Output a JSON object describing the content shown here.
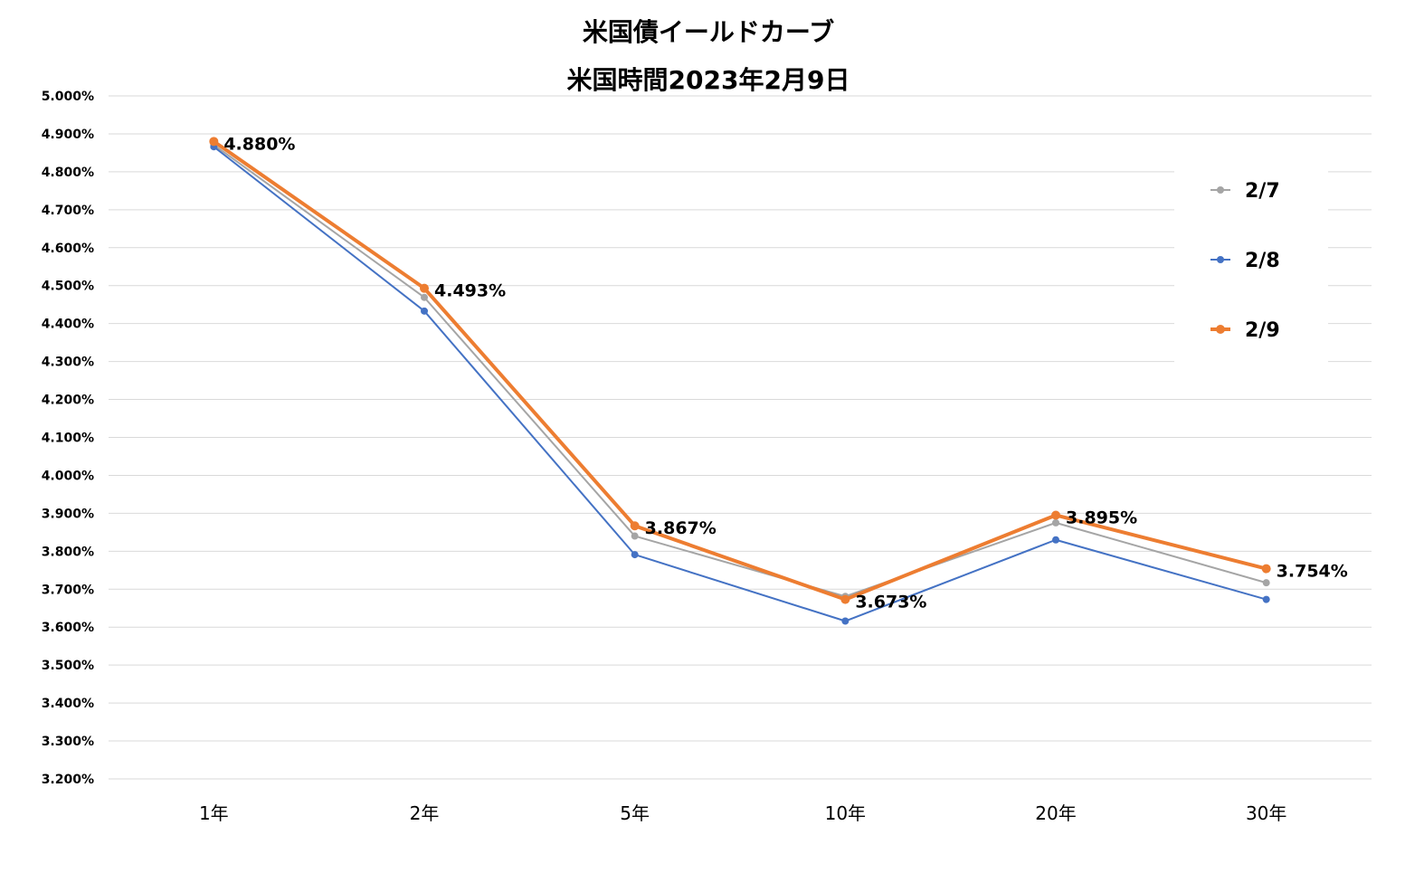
{
  "chart_data": {
    "type": "line",
    "title": "米国債イールドカーブ",
    "subtitle": "米国時間2023年2月9日",
    "categories": [
      "1年",
      "2年",
      "5年",
      "10年",
      "20年",
      "30年"
    ],
    "ylim": [
      3.2,
      5.0
    ],
    "ystep": 0.1,
    "ytick_format": "0.000%",
    "grid": true,
    "legend_position": "right",
    "series": [
      {
        "name": "2/7",
        "color": "#a5a5a5",
        "values": [
          4.871,
          4.469,
          3.84,
          3.681,
          3.875,
          3.717
        ]
      },
      {
        "name": "2/8",
        "color": "#4472c4",
        "values": [
          4.866,
          4.433,
          3.791,
          3.616,
          3.83,
          3.673
        ]
      },
      {
        "name": "2/9",
        "color": "#ed7d31",
        "values": [
          4.88,
          4.493,
          3.867,
          3.673,
          3.895,
          3.754
        ],
        "data_labels": [
          "4.880%",
          "4.493%",
          "3.867%",
          "3.673%",
          "3.895%",
          "3.754%"
        ]
      }
    ]
  }
}
